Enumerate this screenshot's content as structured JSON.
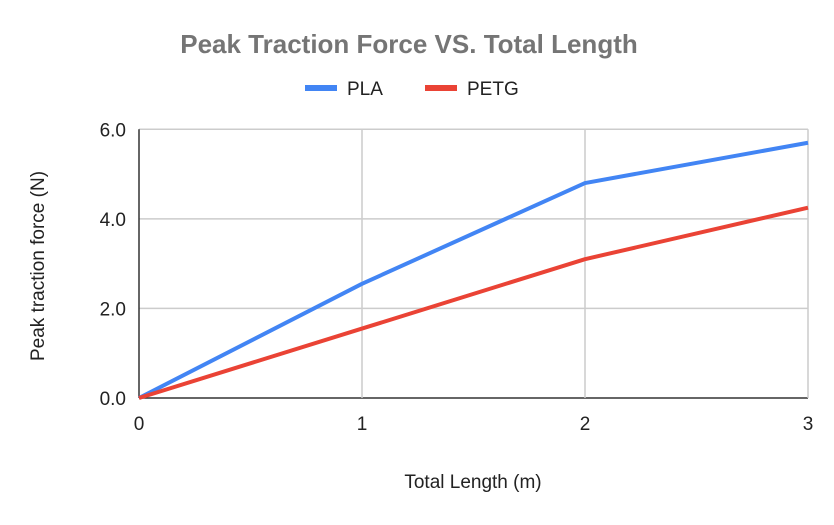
{
  "chart_data": {
    "type": "line",
    "title": "Peak Traction Force VS. Total Length",
    "xlabel": "Total Length (m)",
    "ylabel": "Peak traction force (N)",
    "x": [
      0,
      1,
      2,
      3
    ],
    "xticks": [
      "0",
      "1",
      "2",
      "3"
    ],
    "yticks": [
      "0.0",
      "2.0",
      "4.0",
      "6.0"
    ],
    "xlim": [
      0,
      3
    ],
    "ylim": [
      0,
      6
    ],
    "grid": true,
    "legend_position": "top",
    "series": [
      {
        "name": "PLA",
        "color": "#4285f4",
        "values": [
          0,
          2.55,
          4.8,
          5.7
        ]
      },
      {
        "name": "PETG",
        "color": "#ea4335",
        "values": [
          0,
          1.55,
          3.1,
          4.25
        ]
      }
    ]
  }
}
